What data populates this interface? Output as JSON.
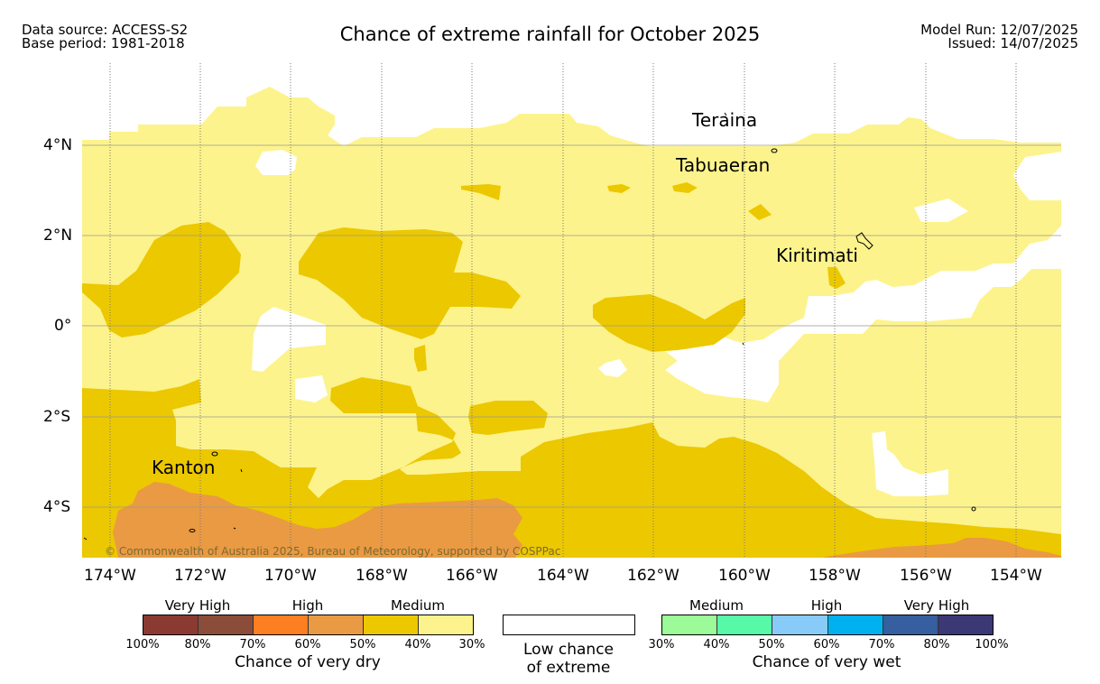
{
  "header": {
    "left_line1": "Data source: ACCESS-S2",
    "left_line2": "Base period: 1981-2018",
    "title": "Chance of extreme rainfall for October 2025",
    "right_line1": "Model Run: 12/07/2025",
    "right_line2": "Issued: 14/07/2025"
  },
  "map": {
    "lon_ticks": [
      "174°W",
      "172°W",
      "170°W",
      "168°W",
      "166°W",
      "164°W",
      "162°W",
      "160°W",
      "158°W",
      "156°W",
      "154°W"
    ],
    "lat_ticks": [
      "4°N",
      "2°N",
      "0°",
      "2°S",
      "4°S"
    ],
    "place_labels": [
      "Teraina",
      "Tabuaeran",
      "Kiritimati",
      "Kanton"
    ],
    "copyright": "© Commonwealth of Australia 2025, Bureau of Meteorology, supported by COSPPac",
    "colors": {
      "medium_dry_light": "#fdf38c",
      "medium_dry_dark": "#ecc800",
      "high_dry_light": "#ea9a43",
      "ocean_low": "#ffffff"
    }
  },
  "legend": {
    "dry": {
      "categories": [
        "Very High",
        "High",
        "Medium"
      ],
      "ticks": [
        "100%",
        "80%",
        "70%",
        "60%",
        "50%",
        "40%",
        "30%"
      ],
      "colors": [
        "#8b3a31",
        "#8b4c3a",
        "#fd7f22",
        "#ea9a43",
        "#ecc800",
        "#fdf38c"
      ],
      "caption": "Chance of very dry"
    },
    "low": {
      "line1": "Low chance",
      "line2": "of extreme"
    },
    "wet": {
      "categories": [
        "Medium",
        "High",
        "Very High"
      ],
      "ticks": [
        "30%",
        "40%",
        "50%",
        "60%",
        "70%",
        "80%",
        "100%"
      ],
      "colors": [
        "#9cfb98",
        "#57f9a8",
        "#88cbf8",
        "#00b0ef",
        "#355f9e",
        "#3b3875"
      ],
      "caption": "Chance of very wet"
    }
  }
}
